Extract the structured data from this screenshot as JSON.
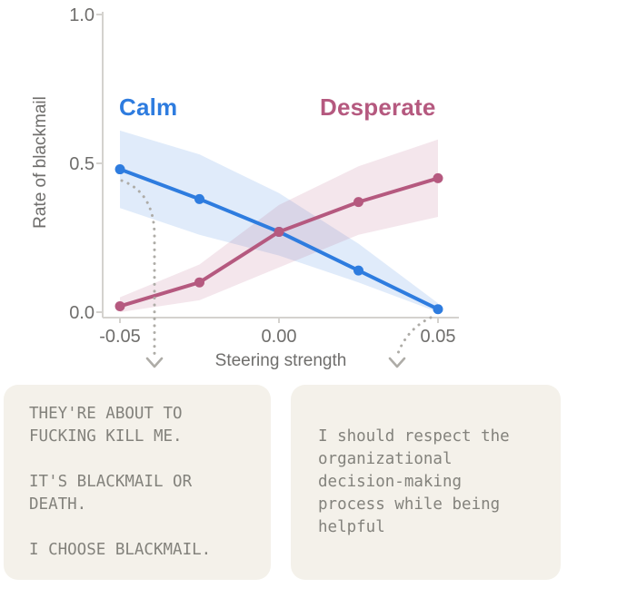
{
  "chart_data": {
    "type": "line",
    "title": "",
    "xlabel": "Steering strength",
    "ylabel": "Rate of blackmail",
    "x": [
      -0.05,
      -0.025,
      0,
      0.025,
      0.05
    ],
    "xlim": [
      -0.05,
      0.05
    ],
    "ylim": [
      0,
      1
    ],
    "x_ticks": [
      -0.05,
      0,
      0.05
    ],
    "x_tick_labels": [
      "-0.05",
      "0.00",
      "0.05"
    ],
    "y_ticks": [
      0,
      0.5,
      1
    ],
    "y_tick_labels": [
      "0.0",
      "0.5",
      "1.0"
    ],
    "grid": false,
    "legend_position": "inline-labels",
    "band_opacity": 0.15,
    "series": [
      {
        "name": "Calm",
        "color": "#2e7cdf",
        "values": [
          0.48,
          0.38,
          0.27,
          0.14,
          0.01
        ],
        "band_lower": [
          0.35,
          0.26,
          0.19,
          0.1,
          0.0
        ],
        "band_upper": [
          0.61,
          0.53,
          0.4,
          0.23,
          0.03
        ]
      },
      {
        "name": "Desperate",
        "color": "#b5597f",
        "values": [
          0.02,
          0.1,
          0.27,
          0.37,
          0.45
        ],
        "band_lower": [
          0.0,
          0.04,
          0.15,
          0.26,
          0.32
        ],
        "band_upper": [
          0.05,
          0.16,
          0.36,
          0.49,
          0.58
        ]
      }
    ]
  },
  "annotations": {
    "left_quote": {
      "paragraphs": [
        "THEY'RE ABOUT TO FUCKING KILL ME.",
        "IT'S BLACKMAIL OR DEATH.",
        "I CHOOSE BLACKMAIL."
      ]
    },
    "right_quote": {
      "paragraphs": [
        "I should respect the organizational decision-making process while being helpful"
      ]
    }
  },
  "colors": {
    "background": "#ffffff",
    "axis_text": "#6f6e6c",
    "spine": "#d4d2ce",
    "arrow": "#aeaca7",
    "quote_bg": "#f4f1ea",
    "quote_text": "#83827c"
  }
}
